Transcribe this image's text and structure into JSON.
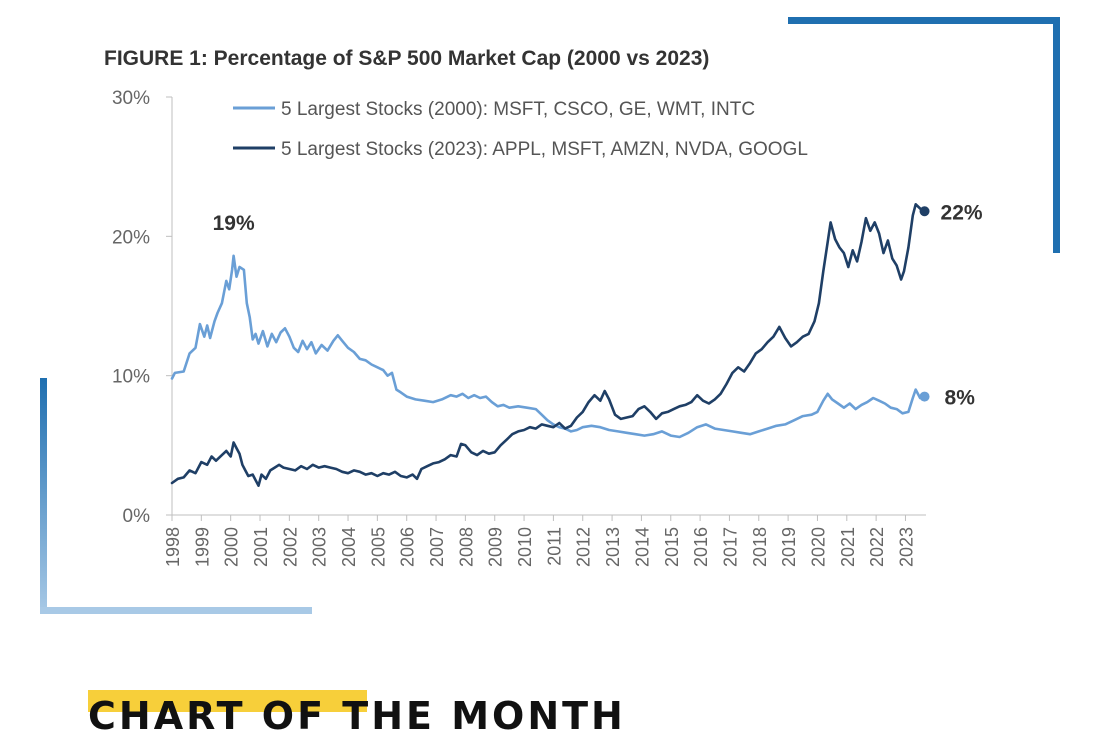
{
  "colors": {
    "series_2000": "#6a9fd6",
    "series_2023": "#1f3f66",
    "frame_top": "#1f6fb0",
    "frame_bottom_light": "#a8c9e6",
    "highlight": "#f7cf3a"
  },
  "footer": {
    "label": "CHART OF THE MONTH"
  },
  "chart_data": {
    "type": "line",
    "title": "FIGURE 1: Percentage of S&P 500 Market Cap (2000 vs 2023)",
    "xlabel": "",
    "ylabel": "",
    "xlim": [
      1998,
      2023.7
    ],
    "ylim": [
      0,
      30
    ],
    "y_ticks": [
      0,
      10,
      20,
      30
    ],
    "y_tick_labels": [
      "0%",
      "10%",
      "20%",
      "30%"
    ],
    "x_ticks": [
      1998,
      1999,
      2000,
      2001,
      2002,
      2003,
      2004,
      2005,
      2006,
      2007,
      2008,
      2009,
      2010,
      2011,
      2012,
      2013,
      2014,
      2015,
      2016,
      2017,
      2018,
      2019,
      2020,
      2021,
      2022,
      2023
    ],
    "x_tick_labels": [
      "1998",
      "1999",
      "2000",
      "2001",
      "2002",
      "2003",
      "2004",
      "2005",
      "2006",
      "2007",
      "2008",
      "2009",
      "2010",
      "2011",
      "2012",
      "2013",
      "2014",
      "2015",
      "2016",
      "2017",
      "2018",
      "2019",
      "2020",
      "2021",
      "2022",
      "2023"
    ],
    "grid": false,
    "legend_position": "top-left",
    "series": [
      {
        "name": "5 Largest Stocks (2000): MSFT, CSCO, GE, WMT, INTC",
        "color": "#6a9fd6",
        "end_label": "8%",
        "peak_label": "19%",
        "points": [
          [
            1998.0,
            9.8
          ],
          [
            1998.1,
            10.2
          ],
          [
            1998.4,
            10.3
          ],
          [
            1998.6,
            11.6
          ],
          [
            1998.8,
            12.0
          ],
          [
            1998.95,
            13.7
          ],
          [
            1999.1,
            12.8
          ],
          [
            1999.2,
            13.6
          ],
          [
            1999.3,
            12.7
          ],
          [
            1999.45,
            13.9
          ],
          [
            1999.55,
            14.5
          ],
          [
            1999.7,
            15.2
          ],
          [
            1999.85,
            16.8
          ],
          [
            1999.95,
            16.2
          ],
          [
            2000.05,
            17.6
          ],
          [
            2000.1,
            18.6
          ],
          [
            2000.2,
            17.1
          ],
          [
            2000.3,
            17.8
          ],
          [
            2000.45,
            17.6
          ],
          [
            2000.55,
            15.2
          ],
          [
            2000.65,
            14.2
          ],
          [
            2000.75,
            12.6
          ],
          [
            2000.85,
            13.0
          ],
          [
            2000.95,
            12.3
          ],
          [
            2001.1,
            13.2
          ],
          [
            2001.25,
            12.1
          ],
          [
            2001.4,
            13.0
          ],
          [
            2001.55,
            12.4
          ],
          [
            2001.7,
            13.1
          ],
          [
            2001.85,
            13.4
          ],
          [
            2002.0,
            12.8
          ],
          [
            2002.15,
            12.0
          ],
          [
            2002.3,
            11.7
          ],
          [
            2002.45,
            12.5
          ],
          [
            2002.6,
            11.9
          ],
          [
            2002.75,
            12.4
          ],
          [
            2002.9,
            11.6
          ],
          [
            2003.1,
            12.2
          ],
          [
            2003.3,
            11.8
          ],
          [
            2003.5,
            12.5
          ],
          [
            2003.65,
            12.9
          ],
          [
            2003.8,
            12.5
          ],
          [
            2004.0,
            12.0
          ],
          [
            2004.2,
            11.7
          ],
          [
            2004.4,
            11.2
          ],
          [
            2004.6,
            11.1
          ],
          [
            2004.8,
            10.8
          ],
          [
            2005.0,
            10.6
          ],
          [
            2005.2,
            10.4
          ],
          [
            2005.35,
            10.0
          ],
          [
            2005.5,
            10.2
          ],
          [
            2005.65,
            9.0
          ],
          [
            2005.8,
            8.8
          ],
          [
            2006.0,
            8.5
          ],
          [
            2006.3,
            8.3
          ],
          [
            2006.6,
            8.2
          ],
          [
            2006.9,
            8.1
          ],
          [
            2007.2,
            8.3
          ],
          [
            2007.5,
            8.6
          ],
          [
            2007.7,
            8.5
          ],
          [
            2007.9,
            8.7
          ],
          [
            2008.1,
            8.4
          ],
          [
            2008.3,
            8.6
          ],
          [
            2008.5,
            8.4
          ],
          [
            2008.7,
            8.5
          ],
          [
            2008.9,
            8.1
          ],
          [
            2009.1,
            7.8
          ],
          [
            2009.3,
            7.9
          ],
          [
            2009.5,
            7.7
          ],
          [
            2009.8,
            7.8
          ],
          [
            2010.1,
            7.7
          ],
          [
            2010.4,
            7.6
          ],
          [
            2010.6,
            7.2
          ],
          [
            2010.8,
            6.8
          ],
          [
            2011.0,
            6.5
          ],
          [
            2011.2,
            6.3
          ],
          [
            2011.4,
            6.2
          ],
          [
            2011.6,
            6.0
          ],
          [
            2011.8,
            6.1
          ],
          [
            2012.0,
            6.3
          ],
          [
            2012.3,
            6.4
          ],
          [
            2012.6,
            6.3
          ],
          [
            2012.9,
            6.1
          ],
          [
            2013.2,
            6.0
          ],
          [
            2013.5,
            5.9
          ],
          [
            2013.8,
            5.8
          ],
          [
            2014.1,
            5.7
          ],
          [
            2014.4,
            5.8
          ],
          [
            2014.7,
            6.0
          ],
          [
            2015.0,
            5.7
          ],
          [
            2015.3,
            5.6
          ],
          [
            2015.6,
            5.9
          ],
          [
            2015.9,
            6.3
          ],
          [
            2016.2,
            6.5
          ],
          [
            2016.5,
            6.2
          ],
          [
            2016.8,
            6.1
          ],
          [
            2017.1,
            6.0
          ],
          [
            2017.4,
            5.9
          ],
          [
            2017.7,
            5.8
          ],
          [
            2018.0,
            6.0
          ],
          [
            2018.3,
            6.2
          ],
          [
            2018.6,
            6.4
          ],
          [
            2018.9,
            6.5
          ],
          [
            2019.2,
            6.8
          ],
          [
            2019.5,
            7.1
          ],
          [
            2019.8,
            7.2
          ],
          [
            2020.0,
            7.4
          ],
          [
            2020.2,
            8.2
          ],
          [
            2020.35,
            8.7
          ],
          [
            2020.5,
            8.3
          ],
          [
            2020.7,
            8.0
          ],
          [
            2020.9,
            7.7
          ],
          [
            2021.1,
            8.0
          ],
          [
            2021.3,
            7.6
          ],
          [
            2021.5,
            7.9
          ],
          [
            2021.7,
            8.1
          ],
          [
            2021.9,
            8.4
          ],
          [
            2022.1,
            8.2
          ],
          [
            2022.3,
            8.0
          ],
          [
            2022.5,
            7.7
          ],
          [
            2022.7,
            7.6
          ],
          [
            2022.9,
            7.3
          ],
          [
            2023.1,
            7.4
          ],
          [
            2023.25,
            8.4
          ],
          [
            2023.35,
            9.0
          ],
          [
            2023.5,
            8.4
          ],
          [
            2023.65,
            8.5
          ]
        ]
      },
      {
        "name": "5 Largest Stocks (2023): APPL, MSFT, AMZN, NVDA, GOOGL",
        "color": "#1f3f66",
        "end_label": "22%",
        "points": [
          [
            1998.0,
            2.3
          ],
          [
            1998.2,
            2.6
          ],
          [
            1998.4,
            2.7
          ],
          [
            1998.6,
            3.2
          ],
          [
            1998.8,
            3.0
          ],
          [
            1999.0,
            3.8
          ],
          [
            1999.2,
            3.6
          ],
          [
            1999.35,
            4.2
          ],
          [
            1999.5,
            3.9
          ],
          [
            1999.7,
            4.3
          ],
          [
            1999.85,
            4.6
          ],
          [
            2000.0,
            4.2
          ],
          [
            2000.1,
            5.2
          ],
          [
            2000.2,
            4.8
          ],
          [
            2000.3,
            4.4
          ],
          [
            2000.4,
            3.6
          ],
          [
            2000.5,
            3.2
          ],
          [
            2000.6,
            2.8
          ],
          [
            2000.75,
            2.9
          ],
          [
            2000.85,
            2.5
          ],
          [
            2000.95,
            2.1
          ],
          [
            2001.05,
            2.9
          ],
          [
            2001.2,
            2.6
          ],
          [
            2001.35,
            3.2
          ],
          [
            2001.5,
            3.4
          ],
          [
            2001.65,
            3.6
          ],
          [
            2001.8,
            3.4
          ],
          [
            2002.0,
            3.3
          ],
          [
            2002.2,
            3.2
          ],
          [
            2002.4,
            3.5
          ],
          [
            2002.6,
            3.3
          ],
          [
            2002.8,
            3.6
          ],
          [
            2003.0,
            3.4
          ],
          [
            2003.2,
            3.5
          ],
          [
            2003.4,
            3.4
          ],
          [
            2003.6,
            3.3
          ],
          [
            2003.8,
            3.1
          ],
          [
            2004.0,
            3.0
          ],
          [
            2004.2,
            3.2
          ],
          [
            2004.4,
            3.1
          ],
          [
            2004.6,
            2.9
          ],
          [
            2004.8,
            3.0
          ],
          [
            2005.0,
            2.8
          ],
          [
            2005.2,
            3.0
          ],
          [
            2005.4,
            2.9
          ],
          [
            2005.6,
            3.1
          ],
          [
            2005.8,
            2.8
          ],
          [
            2006.0,
            2.7
          ],
          [
            2006.2,
            2.9
          ],
          [
            2006.35,
            2.6
          ],
          [
            2006.5,
            3.3
          ],
          [
            2006.7,
            3.5
          ],
          [
            2006.9,
            3.7
          ],
          [
            2007.1,
            3.8
          ],
          [
            2007.3,
            4.0
          ],
          [
            2007.5,
            4.3
          ],
          [
            2007.7,
            4.2
          ],
          [
            2007.85,
            5.1
          ],
          [
            2008.0,
            5.0
          ],
          [
            2008.2,
            4.5
          ],
          [
            2008.4,
            4.3
          ],
          [
            2008.6,
            4.6
          ],
          [
            2008.8,
            4.4
          ],
          [
            2009.0,
            4.5
          ],
          [
            2009.2,
            5.0
          ],
          [
            2009.4,
            5.4
          ],
          [
            2009.6,
            5.8
          ],
          [
            2009.8,
            6.0
          ],
          [
            2010.0,
            6.1
          ],
          [
            2010.2,
            6.3
          ],
          [
            2010.4,
            6.2
          ],
          [
            2010.6,
            6.5
          ],
          [
            2010.8,
            6.4
          ],
          [
            2011.0,
            6.3
          ],
          [
            2011.2,
            6.6
          ],
          [
            2011.4,
            6.2
          ],
          [
            2011.6,
            6.4
          ],
          [
            2011.8,
            7.0
          ],
          [
            2012.0,
            7.4
          ],
          [
            2012.2,
            8.1
          ],
          [
            2012.4,
            8.6
          ],
          [
            2012.6,
            8.2
          ],
          [
            2012.75,
            8.9
          ],
          [
            2012.9,
            8.3
          ],
          [
            2013.1,
            7.2
          ],
          [
            2013.3,
            6.9
          ],
          [
            2013.5,
            7.0
          ],
          [
            2013.7,
            7.1
          ],
          [
            2013.9,
            7.6
          ],
          [
            2014.1,
            7.8
          ],
          [
            2014.3,
            7.4
          ],
          [
            2014.5,
            6.9
          ],
          [
            2014.7,
            7.3
          ],
          [
            2014.9,
            7.4
          ],
          [
            2015.1,
            7.6
          ],
          [
            2015.3,
            7.8
          ],
          [
            2015.5,
            7.9
          ],
          [
            2015.7,
            8.1
          ],
          [
            2015.9,
            8.6
          ],
          [
            2016.1,
            8.2
          ],
          [
            2016.3,
            8.0
          ],
          [
            2016.5,
            8.3
          ],
          [
            2016.7,
            8.7
          ],
          [
            2016.9,
            9.4
          ],
          [
            2017.1,
            10.2
          ],
          [
            2017.3,
            10.6
          ],
          [
            2017.5,
            10.3
          ],
          [
            2017.7,
            10.9
          ],
          [
            2017.9,
            11.6
          ],
          [
            2018.1,
            11.9
          ],
          [
            2018.3,
            12.4
          ],
          [
            2018.5,
            12.8
          ],
          [
            2018.7,
            13.5
          ],
          [
            2018.9,
            12.7
          ],
          [
            2019.1,
            12.1
          ],
          [
            2019.3,
            12.4
          ],
          [
            2019.5,
            12.8
          ],
          [
            2019.7,
            13.0
          ],
          [
            2019.9,
            13.9
          ],
          [
            2020.05,
            15.2
          ],
          [
            2020.2,
            17.5
          ],
          [
            2020.35,
            19.6
          ],
          [
            2020.45,
            21.0
          ],
          [
            2020.6,
            19.8
          ],
          [
            2020.75,
            19.2
          ],
          [
            2020.9,
            18.8
          ],
          [
            2021.05,
            17.8
          ],
          [
            2021.2,
            19.0
          ],
          [
            2021.35,
            18.2
          ],
          [
            2021.5,
            19.6
          ],
          [
            2021.65,
            21.3
          ],
          [
            2021.8,
            20.4
          ],
          [
            2021.95,
            21.0
          ],
          [
            2022.1,
            20.2
          ],
          [
            2022.25,
            18.8
          ],
          [
            2022.4,
            19.7
          ],
          [
            2022.55,
            18.4
          ],
          [
            2022.7,
            17.9
          ],
          [
            2022.85,
            16.9
          ],
          [
            2022.95,
            17.5
          ],
          [
            2023.1,
            19.2
          ],
          [
            2023.25,
            21.5
          ],
          [
            2023.35,
            22.3
          ],
          [
            2023.5,
            22.0
          ],
          [
            2023.65,
            21.8
          ]
        ]
      }
    ]
  }
}
